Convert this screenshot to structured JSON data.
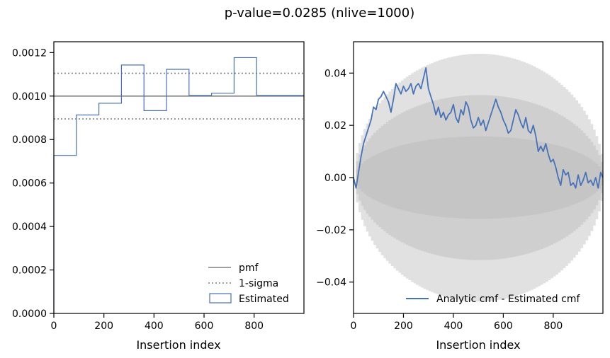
{
  "suptitle": "p-value=0.0285 (nlive=1000)",
  "colors": {
    "series": "#4872b8",
    "reference": "#808080",
    "band": "#b8b8b8"
  },
  "chart_data": [
    {
      "type": "step",
      "title": "",
      "xlabel": "Insertion index",
      "ylabel": "",
      "xlim": [
        0,
        999
      ],
      "ylim": [
        0,
        0.00125
      ],
      "xticks": [
        0,
        200,
        400,
        600,
        800
      ],
      "xtick_labels": [
        "0",
        "200",
        "400",
        "600",
        "800"
      ],
      "yticks": [
        0,
        0.0002,
        0.0004,
        0.0006,
        0.0008,
        0.001,
        0.0012
      ],
      "ytick_labels": [
        "0.0000",
        "0.0002",
        "0.0004",
        "0.0006",
        "0.0008",
        "0.0010",
        "0.0012"
      ],
      "pmf": 0.001,
      "sigma_lower": 0.000895,
      "sigma_upper": 0.001105,
      "bin_edges": [
        0,
        90,
        180,
        270,
        360,
        450,
        540,
        630,
        720,
        810,
        900,
        999
      ],
      "estimated": [
        0.000727,
        0.000913,
        0.000967,
        0.001143,
        0.000933,
        0.001123,
        0.001003,
        0.001013,
        0.001177,
        0.001003,
        0.001003
      ],
      "legend": [
        "pmf",
        "1-sigma",
        "Estimated"
      ],
      "legend_position": "lower-right"
    },
    {
      "type": "line",
      "title": "",
      "xlabel": "Insertion index",
      "ylabel": "",
      "xlim": [
        0,
        999
      ],
      "ylim": [
        -0.052,
        0.052
      ],
      "xticks": [
        0,
        200,
        400,
        600,
        800
      ],
      "xtick_labels": [
        "0",
        "200",
        "400",
        "600",
        "800"
      ],
      "yticks": [
        -0.04,
        -0.02,
        0.0,
        0.02,
        0.04
      ],
      "ytick_labels": [
        "−0.04",
        "−0.02",
        "0.00",
        "0.02",
        "0.04"
      ],
      "sigma_bands": [
        1,
        2,
        3
      ],
      "band_scale": 0.0158,
      "series": [
        {
          "name": "Analytic cmf - Estimated cmf",
          "x": [
            0,
            10,
            20,
            30,
            40,
            50,
            60,
            70,
            80,
            90,
            100,
            110,
            120,
            130,
            140,
            150,
            160,
            170,
            180,
            190,
            200,
            210,
            220,
            230,
            240,
            250,
            260,
            270,
            280,
            290,
            300,
            310,
            320,
            330,
            340,
            350,
            360,
            370,
            380,
            390,
            400,
            410,
            420,
            430,
            440,
            450,
            460,
            470,
            480,
            490,
            500,
            510,
            520,
            530,
            540,
            550,
            560,
            570,
            580,
            590,
            600,
            610,
            620,
            630,
            640,
            650,
            660,
            670,
            680,
            690,
            700,
            710,
            720,
            730,
            740,
            750,
            760,
            770,
            780,
            790,
            800,
            810,
            820,
            830,
            840,
            850,
            860,
            870,
            880,
            890,
            900,
            910,
            920,
            930,
            940,
            950,
            960,
            970,
            980,
            990,
            999
          ],
          "y": [
            0.0,
            -0.004,
            0.002,
            0.008,
            0.013,
            0.016,
            0.019,
            0.022,
            0.027,
            0.026,
            0.03,
            0.031,
            0.033,
            0.031,
            0.029,
            0.025,
            0.03,
            0.036,
            0.034,
            0.032,
            0.035,
            0.033,
            0.034,
            0.036,
            0.032,
            0.035,
            0.036,
            0.034,
            0.038,
            0.042,
            0.034,
            0.031,
            0.028,
            0.024,
            0.027,
            0.023,
            0.025,
            0.022,
            0.024,
            0.025,
            0.028,
            0.023,
            0.021,
            0.026,
            0.024,
            0.029,
            0.027,
            0.022,
            0.019,
            0.02,
            0.023,
            0.02,
            0.022,
            0.018,
            0.021,
            0.024,
            0.027,
            0.03,
            0.027,
            0.025,
            0.022,
            0.02,
            0.017,
            0.018,
            0.022,
            0.026,
            0.024,
            0.021,
            0.019,
            0.023,
            0.018,
            0.017,
            0.02,
            0.016,
            0.01,
            0.012,
            0.01,
            0.013,
            0.009,
            0.006,
            0.007,
            0.004,
            0.0,
            -0.003,
            0.003,
            0.001,
            0.002,
            -0.003,
            -0.002,
            -0.004,
            0.001,
            -0.003,
            -0.001,
            0.002,
            -0.002,
            -0.001,
            -0.003,
            0.0,
            -0.004,
            0.002,
            0.0
          ]
        }
      ],
      "legend": [
        "Analytic cmf - Estimated cmf"
      ],
      "legend_position": "lower-right"
    }
  ]
}
